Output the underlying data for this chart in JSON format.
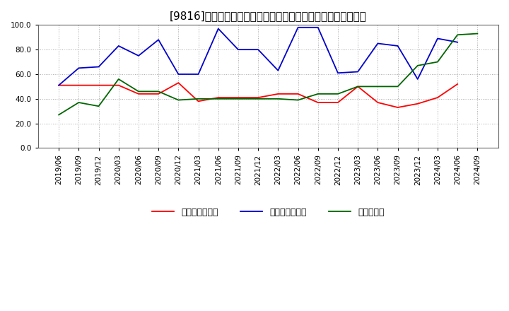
{
  "title": "[9816]  売上債権回転率、買入債務回転率、在庫回転率の推移",
  "ylim": [
    0.0,
    100.0
  ],
  "yticks": [
    0.0,
    20.0,
    40.0,
    60.0,
    80.0,
    100.0
  ],
  "dates": [
    "2019/06",
    "2019/09",
    "2019/12",
    "2020/03",
    "2020/06",
    "2020/09",
    "2020/12",
    "2021/03",
    "2021/06",
    "2021/09",
    "2021/12",
    "2022/03",
    "2022/06",
    "2022/09",
    "2022/12",
    "2023/03",
    "2023/06",
    "2023/09",
    "2023/12",
    "2024/03",
    "2024/06",
    "2024/09"
  ],
  "receivables_turnover": [
    51.0,
    51.0,
    51.0,
    51.0,
    44.0,
    44.0,
    53.0,
    38.0,
    41.0,
    41.0,
    41.0,
    44.0,
    44.0,
    37.0,
    37.0,
    50.0,
    37.0,
    33.0,
    36.0,
    41.0,
    52.0,
    null
  ],
  "payables_turnover": [
    51.0,
    65.0,
    66.0,
    83.0,
    75.0,
    88.0,
    60.0,
    60.0,
    97.0,
    80.0,
    80.0,
    63.0,
    98.0,
    98.0,
    61.0,
    62.0,
    85.0,
    83.0,
    56.0,
    89.0,
    86.0,
    null
  ],
  "inventory_turnover": [
    27.0,
    37.0,
    34.0,
    56.0,
    46.0,
    46.0,
    39.0,
    40.0,
    40.0,
    40.0,
    40.0,
    40.0,
    39.0,
    44.0,
    44.0,
    50.0,
    50.0,
    50.0,
    67.0,
    70.0,
    92.0,
    93.0
  ],
  "line_colors": {
    "receivables": "#ff0000",
    "payables": "#0000cc",
    "inventory": "#006600"
  },
  "legend_labels": {
    "receivables": "売上債権回転率",
    "payables": "買入債務回転率",
    "inventory": "在庫回転率"
  },
  "title_text": "[9816]　売上債権回転率、買入債務回転率、在庫回転率の推移",
  "background_color": "#ffffff",
  "grid_color": "#aaaaaa",
  "title_fontsize": 11,
  "tick_fontsize": 7.5,
  "legend_fontsize": 9
}
